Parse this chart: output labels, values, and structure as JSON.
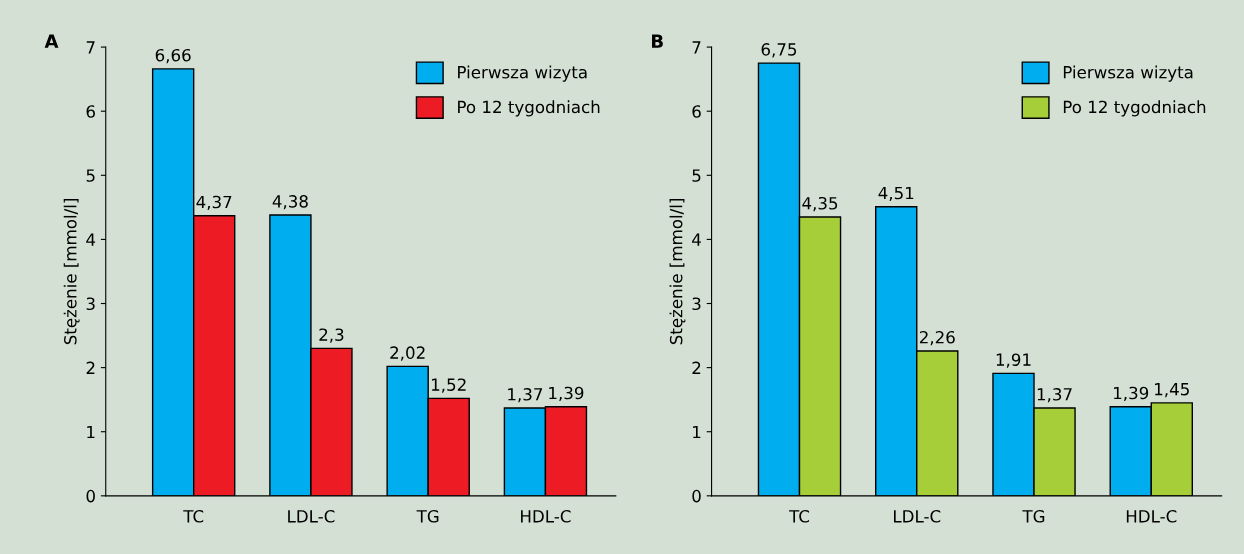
{
  "chart_data": [
    {
      "type": "bar",
      "title": "A",
      "ylabel": "Stężenie [mmol/l]",
      "categories": [
        "TC",
        "LDL-C",
        "TG",
        "HDL-C"
      ],
      "ylim": [
        0,
        7
      ],
      "yticks": [
        0,
        1,
        2,
        3,
        4,
        5,
        6,
        7
      ],
      "legend": "top right",
      "grid": false,
      "series": [
        {
          "name": "Pierwsza wizyta",
          "color": "#00aeef",
          "values": [
            6.66,
            4.38,
            2.02,
            1.37
          ],
          "value_labels": [
            "6,66",
            "4,38",
            "2,02",
            "1,37"
          ]
        },
        {
          "name": "Po 12 tygodniach",
          "color": "#ed1c24",
          "values": [
            4.37,
            2.3,
            1.52,
            1.39
          ],
          "value_labels": [
            "4,37",
            "2,3",
            "1,52",
            "1,39"
          ]
        }
      ]
    },
    {
      "type": "bar",
      "title": "B",
      "ylabel": "Stężenie [mmol/l]",
      "categories": [
        "TC",
        "LDL-C",
        "TG",
        "HDL-C"
      ],
      "ylim": [
        0,
        7
      ],
      "yticks": [
        0,
        1,
        2,
        3,
        4,
        5,
        6,
        7
      ],
      "legend": "top right",
      "grid": false,
      "series": [
        {
          "name": "Pierwsza wizyta",
          "color": "#00aeef",
          "values": [
            6.75,
            4.51,
            1.91,
            1.39
          ],
          "value_labels": [
            "6,75",
            "4,51",
            "1,91",
            "1,39"
          ]
        },
        {
          "name": "Po 12 tygodniach",
          "color": "#a6ce39",
          "values": [
            4.35,
            2.26,
            1.37,
            1.45
          ],
          "value_labels": [
            "4,35",
            "2,26",
            "1,37",
            "1,45"
          ]
        }
      ]
    }
  ]
}
